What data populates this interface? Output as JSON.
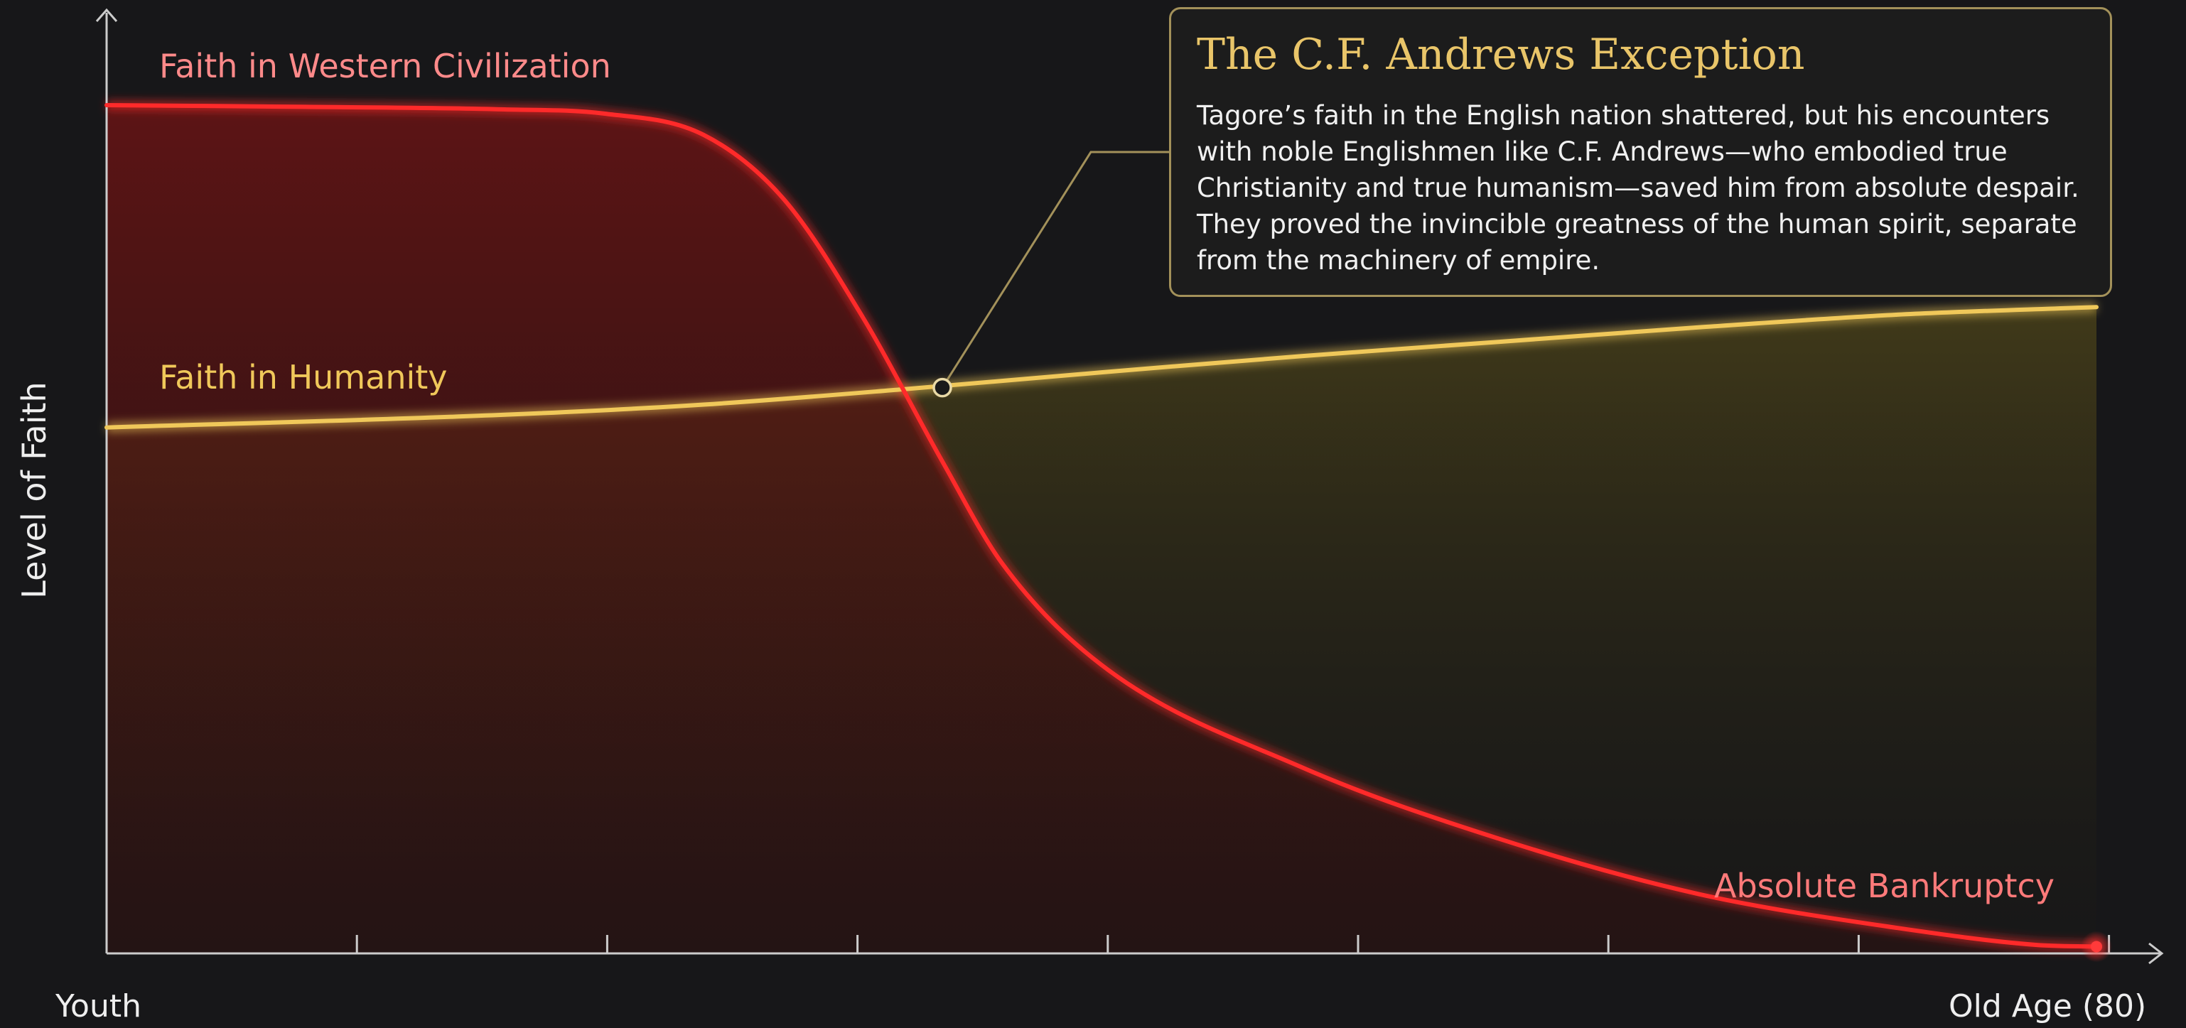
{
  "chart_data": {
    "type": "line",
    "xlabel": "",
    "ylabel": "Level of Faith",
    "x_axis": {
      "start_label": "Youth",
      "end_label": "Old Age (80)",
      "tick_count": 8
    },
    "ylim": [
      0,
      100
    ],
    "grid": false,
    "series": [
      {
        "name": "Faith in Western Civilization",
        "color": "#ff2a2a",
        "x": [
          0.0,
          0.1,
          0.2,
          0.25,
          0.3,
          0.34,
          0.38,
          0.42,
          0.45,
          0.5,
          0.6,
          0.7,
          0.8,
          0.9,
          0.97,
          1.0
        ],
        "values": [
          100,
          99.8,
          99.5,
          99,
          96.5,
          89,
          75,
          58,
          46,
          34,
          22,
          13.5,
          7,
          3,
          1,
          0.8
        ]
      },
      {
        "name": "Faith in Humanity",
        "color": "#f0c85a",
        "x": [
          0.0,
          0.2,
          0.3,
          0.4,
          0.5,
          0.6,
          0.7,
          0.8,
          0.9,
          1.0
        ],
        "values": [
          62,
          63.5,
          64.7,
          66.5,
          68.5,
          70.4,
          72.1,
          73.8,
          75.3,
          76.2
        ]
      }
    ],
    "annotations": [
      {
        "text": "Absolute Bankruptcy",
        "color": "#ff7a7a"
      }
    ],
    "callout": {
      "title": "The C.F. Andrews Exception",
      "body": "Tagore’s faith in the English nation shattered, but his encounters with noble Englishmen like C.F. Andrews—who embodied true Christianity and true humanism—saved him from absolute despair. They proved the invincible greatness of the human spirit, separate from the machinery of empire.",
      "anchor_x": 0.42,
      "anchor_y": 66.7,
      "border_color": "#a3915a",
      "title_color": "#e9c569"
    },
    "colors": {
      "background": "#171719",
      "axis": "#cccccc"
    }
  }
}
